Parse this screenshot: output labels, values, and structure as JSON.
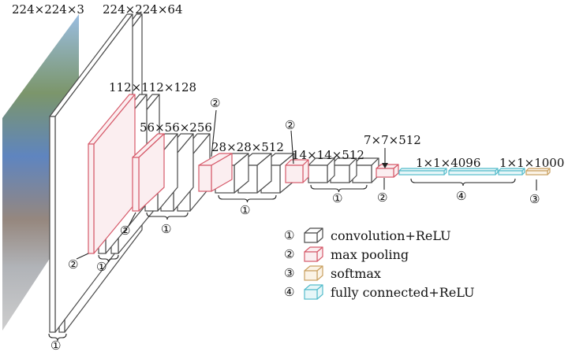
{
  "colors": {
    "conv": "#4a4a4a",
    "pool": "#d65a6a",
    "softmax": "#c9a060",
    "fc": "#55bccb"
  },
  "image_icon": "street-photo-input",
  "dims": {
    "input": "224×224×3",
    "conv1": "224×224×64",
    "conv2": "112×112×128",
    "conv3": "56×56×256",
    "conv4": "28×28×512",
    "conv5": "14×14×512",
    "pool5": "7×7×512",
    "fc": "1×1×4096",
    "softmax": "1×1×1000"
  },
  "markers": {
    "conv1": "①",
    "pool1": "②",
    "conv2": "①",
    "pool2": "②",
    "conv3": "①",
    "pool3": "②",
    "conv4": "①",
    "pool4": "②",
    "conv5": "①",
    "pool5": "②",
    "fc": "④",
    "softmax": "③"
  },
  "legend": [
    {
      "marker": "①",
      "label": "convolution+ReLU",
      "type": "conv"
    },
    {
      "marker": "②",
      "label": "max pooling",
      "type": "pool"
    },
    {
      "marker": "③",
      "label": "softmax",
      "type": "softmax"
    },
    {
      "marker": "④",
      "label": "fully connected+ReLU",
      "type": "fc"
    }
  ]
}
